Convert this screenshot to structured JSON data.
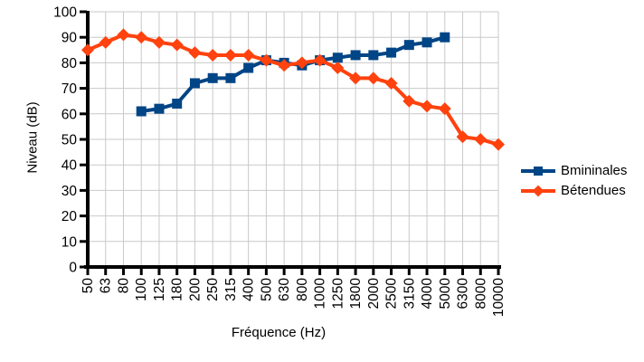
{
  "chart_data": {
    "type": "line",
    "title": "",
    "xlabel": "Fréquence (Hz)",
    "ylabel": "Niveau (dB)",
    "ylim": [
      0,
      100
    ],
    "ytick_step": 10,
    "y_ticks": [
      0,
      10,
      20,
      30,
      40,
      50,
      60,
      70,
      80,
      90,
      100
    ],
    "categories": [
      "50",
      "63",
      "80",
      "100",
      "125",
      "180",
      "200",
      "250",
      "315",
      "400",
      "500",
      "630",
      "800",
      "1000",
      "1250",
      "1800",
      "2000",
      "2500",
      "3150",
      "4000",
      "5000",
      "6300",
      "8000",
      "10000"
    ],
    "series": [
      {
        "name": "Bmininales",
        "color": "#004586",
        "marker": "square",
        "values": [
          null,
          null,
          null,
          61,
          62,
          64,
          72,
          74,
          74,
          78,
          81,
          80,
          79,
          81,
          82,
          83,
          83,
          84,
          87,
          88,
          90,
          null,
          null,
          null
        ]
      },
      {
        "name": "Bétendues",
        "color": "#FF420E",
        "marker": "diamond",
        "values": [
          85,
          88,
          91,
          90,
          88,
          87,
          84,
          83,
          83,
          83,
          81,
          79,
          80,
          81,
          78,
          74,
          74,
          72,
          65,
          63,
          62,
          51,
          50,
          48
        ]
      }
    ],
    "legend_position": "right",
    "grid": true,
    "grid_color": "#c9c9c9",
    "axis_color": "#000000",
    "background": "#ffffff"
  }
}
